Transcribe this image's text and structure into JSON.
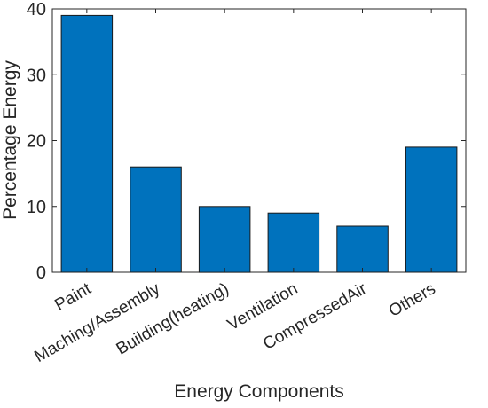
{
  "chart_data": {
    "type": "bar",
    "categories": [
      "Paint",
      "Maching/Assembly",
      "Building(heating)",
      "Ventilation",
      "CompressedAir",
      "Others"
    ],
    "values": [
      39,
      16,
      10,
      9,
      7,
      19
    ],
    "title": "",
    "xlabel": "Energy Components",
    "ylabel": "Percentage Energy",
    "ylim": [
      0,
      40
    ],
    "yticks": [
      0,
      10,
      20,
      30,
      40
    ],
    "grid": false,
    "legend": "none",
    "bar_color": "#0072BD",
    "bar_edge_color": "#1a1a1a"
  }
}
